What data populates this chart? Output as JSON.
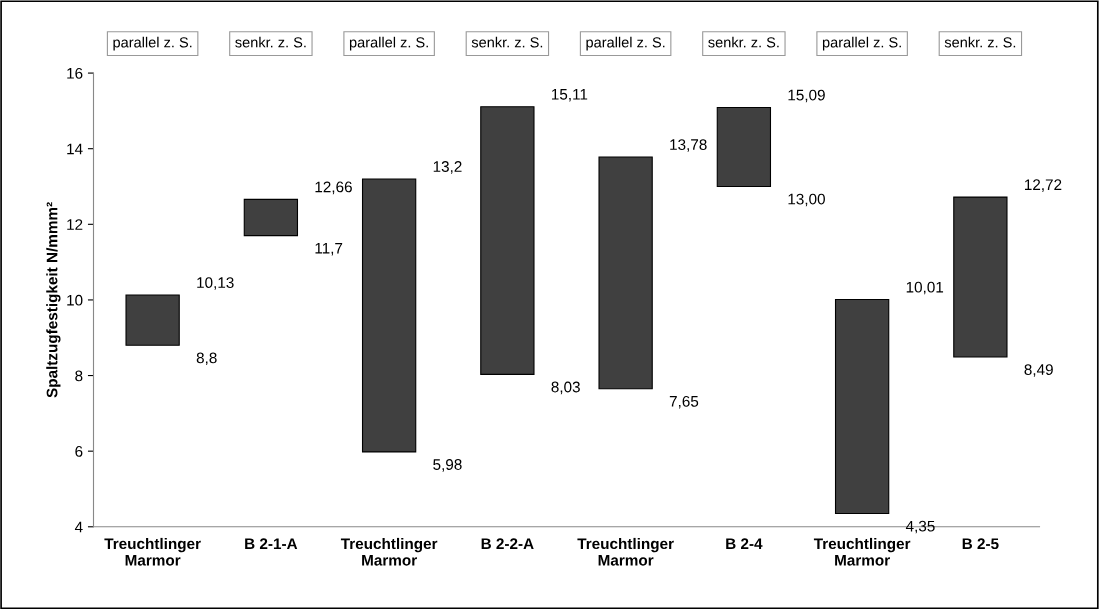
{
  "chart_data": {
    "type": "bar",
    "ylabel": "Spaltzugfestigkeit N/mmm²",
    "categories": [
      "Treuchtlinger\nMarmor",
      "B 2-1-A",
      "Treuchtlinger\nMarmor",
      "B 2-2-A",
      "Treuchtlinger\nMarmor",
      "B 2-4",
      "Treuchtlinger\nMarmor",
      "B 2-5"
    ],
    "base": [
      8.8,
      11.7,
      5.98,
      8.03,
      7.65,
      13.0,
      4.35,
      8.49
    ],
    "values": [
      1.33,
      0.96,
      7.22,
      7.08,
      6.13,
      2.09,
      5.66,
      4.23
    ],
    "color": "#404040",
    "ylim": [
      4,
      16
    ],
    "yticks": [
      4,
      6,
      8,
      10,
      12,
      14,
      16
    ],
    "grid": false,
    "legend": false,
    "annotations": [
      "parallel z. S.",
      "senkr. z. S.",
      "parallel z. S.",
      "senkr. z. S.",
      "parallel z. S.",
      "senkr. z. S.",
      "parallel z. S.",
      "senkr. z. S.",
      "10,13",
      "8,8",
      "12,66",
      "11,7",
      "13,2",
      "5,98",
      "15,11",
      "8,03",
      "13,78",
      "7,65",
      "15,09",
      "13,00",
      "10,01",
      "4,35",
      "12,72",
      "8,49"
    ]
  }
}
